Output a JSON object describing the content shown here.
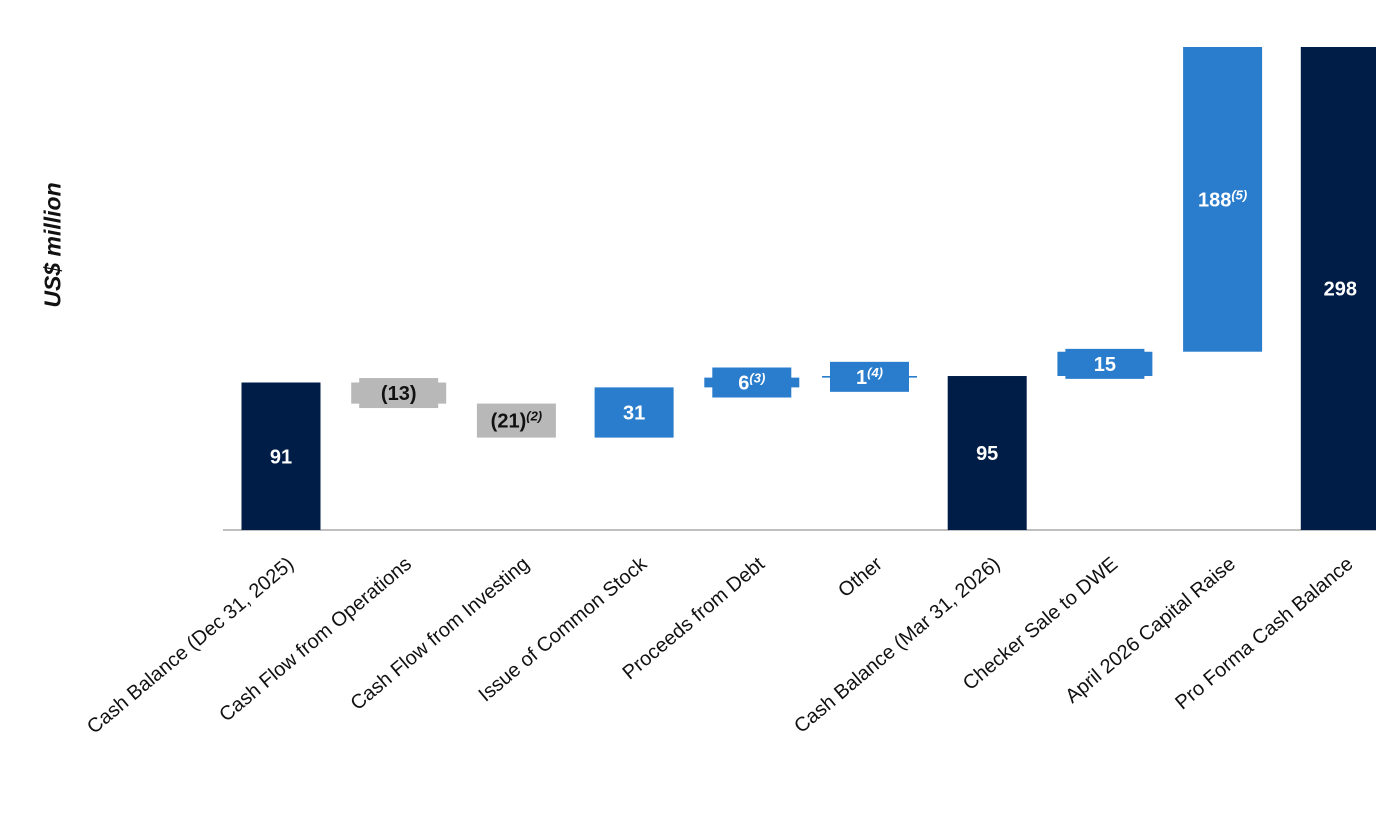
{
  "chart_data": {
    "type": "bar",
    "subtype": "waterfall",
    "ylabel": "US$ million",
    "categories": [
      "Cash Balance (Dec 31, 2025)",
      "Cash Flow from Operations",
      "Cash Flow from Investing",
      "Issue of Common Stock",
      "Proceeds from Debt",
      "Other",
      "Cash Balance (Mar 31, 2026)",
      "Checker Sale to DWE",
      "April 2026 Capital Raise",
      "Pro Forma Cash Balance"
    ],
    "values": [
      91,
      -13,
      -21,
      31,
      6,
      1,
      95,
      15,
      188,
      298
    ],
    "bar_kinds": [
      "total",
      "decrease",
      "decrease",
      "increase",
      "increase",
      "increase",
      "total",
      "increase",
      "increase",
      "total"
    ],
    "value_labels": [
      "91",
      "(13)",
      "(21)",
      "31",
      "6",
      "1",
      "95",
      "15",
      "188",
      "298"
    ],
    "footnotes": [
      "",
      "",
      "(2)",
      "",
      "(3)",
      "(4)",
      "",
      "",
      "(5)",
      ""
    ],
    "ylim": [
      0,
      298
    ],
    "grid": false,
    "legend": "none",
    "colors": {
      "total": "#001d48",
      "increase": "#2a7dcc",
      "decrease": "#b8b8b8",
      "total_text": "#ffffff",
      "increase_text": "#ffffff",
      "decrease_text": "#111111",
      "axis": "#bfbfbf"
    }
  }
}
